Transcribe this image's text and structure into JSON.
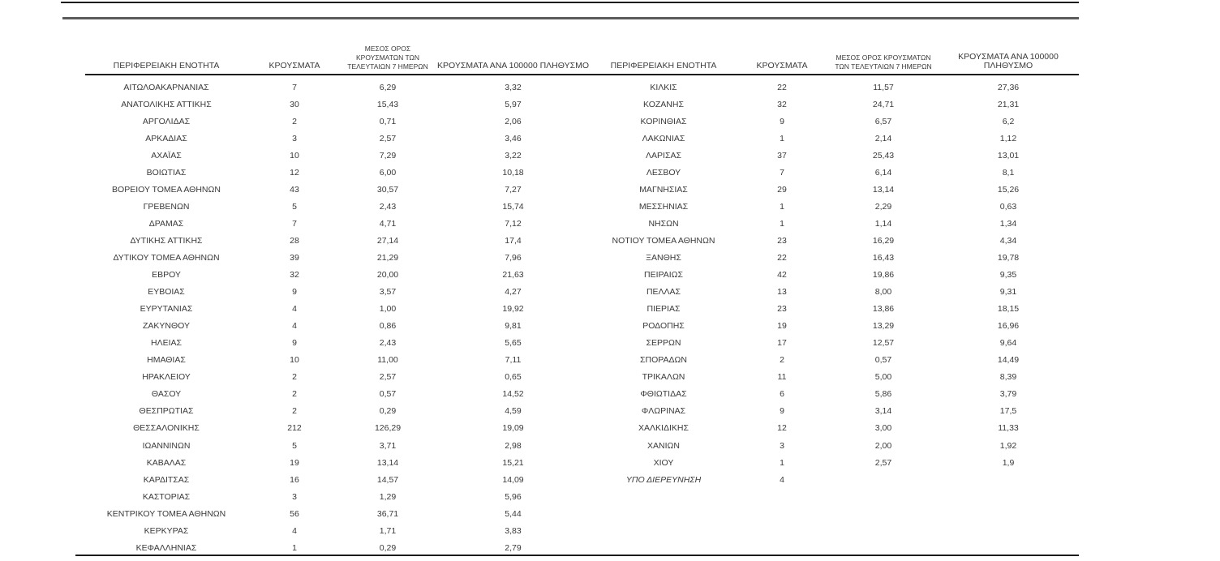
{
  "page": {
    "background": "#ffffff",
    "text_color": "#3a3a3a",
    "rule_black": "#1c1c1c",
    "rule_gray": "#5b5b5b"
  },
  "header": {
    "col_region": "ΠΕΡΙΦΕΡΕΙΑΚΗ ΕΝΟΤΗΤΑ",
    "col_cases": "ΚΡΟΥΣΜΑΤΑ",
    "col_avg7": "ΜΕΣΟΣ ΟΡΟΣ ΚΡΟΥΣΜΑΤΩΝ ΤΩΝ ΤΕΛΕΥΤΑΙΩΝ 7 ΗΜΕΡΩΝ",
    "col_per100k": "ΚΡΟΥΣΜΑΤΑ ΑΝΑ 100000 ΠΛΗΘΥΣΜΟ"
  },
  "tables": [
    {
      "id": "left",
      "rows": [
        {
          "region": "ΑΙΤΩΛΟΑΚΑΡΝΑΝΙΑΣ",
          "cases": "7",
          "avg7": "6,29",
          "per100k": "3,32"
        },
        {
          "region": "ΑΝΑΤΟΛΙΚΗΣ ΑΤΤΙΚΗΣ",
          "cases": "30",
          "avg7": "15,43",
          "per100k": "5,97"
        },
        {
          "region": "ΑΡΓΟΛΙΔΑΣ",
          "cases": "2",
          "avg7": "0,71",
          "per100k": "2,06"
        },
        {
          "region": "ΑΡΚΑΔΙΑΣ",
          "cases": "3",
          "avg7": "2,57",
          "per100k": "3,46"
        },
        {
          "region": "ΑΧΑΪΑΣ",
          "cases": "10",
          "avg7": "7,29",
          "per100k": "3,22"
        },
        {
          "region": "ΒΟΙΩΤΙΑΣ",
          "cases": "12",
          "avg7": "6,00",
          "per100k": "10,18"
        },
        {
          "region": "ΒΟΡΕΙΟΥ ΤΟΜΕΑ ΑΘΗΝΩΝ",
          "cases": "43",
          "avg7": "30,57",
          "per100k": "7,27"
        },
        {
          "region": "ΓΡΕΒΕΝΩΝ",
          "cases": "5",
          "avg7": "2,43",
          "per100k": "15,74"
        },
        {
          "region": "ΔΡΑΜΑΣ",
          "cases": "7",
          "avg7": "4,71",
          "per100k": "7,12"
        },
        {
          "region": "ΔΥΤΙΚΗΣ ΑΤΤΙΚΗΣ",
          "cases": "28",
          "avg7": "27,14",
          "per100k": "17,4"
        },
        {
          "region": "ΔΥΤΙΚΟΥ ΤΟΜΕΑ ΑΘΗΝΩΝ",
          "cases": "39",
          "avg7": "21,29",
          "per100k": "7,96"
        },
        {
          "region": "ΕΒΡΟΥ",
          "cases": "32",
          "avg7": "20,00",
          "per100k": "21,63"
        },
        {
          "region": "ΕΥΒΟΙΑΣ",
          "cases": "9",
          "avg7": "3,57",
          "per100k": "4,27"
        },
        {
          "region": "ΕΥΡΥΤΑΝΙΑΣ",
          "cases": "4",
          "avg7": "1,00",
          "per100k": "19,92"
        },
        {
          "region": "ΖΑΚΥΝΘΟΥ",
          "cases": "4",
          "avg7": "0,86",
          "per100k": "9,81"
        },
        {
          "region": "ΗΛΕΙΑΣ",
          "cases": "9",
          "avg7": "2,43",
          "per100k": "5,65"
        },
        {
          "region": "ΗΜΑΘΙΑΣ",
          "cases": "10",
          "avg7": "11,00",
          "per100k": "7,11"
        },
        {
          "region": "ΗΡΑΚΛΕΙΟΥ",
          "cases": "2",
          "avg7": "2,57",
          "per100k": "0,65"
        },
        {
          "region": "ΘΑΣΟΥ",
          "cases": "2",
          "avg7": "0,57",
          "per100k": "14,52"
        },
        {
          "region": "ΘΕΣΠΡΩΤΙΑΣ",
          "cases": "2",
          "avg7": "0,29",
          "per100k": "4,59"
        },
        {
          "region": "ΘΕΣΣΑΛΟΝΙΚΗΣ",
          "cases": "212",
          "avg7": "126,29",
          "per100k": "19,09"
        },
        {
          "region": "ΙΩΑΝΝΙΝΩΝ",
          "cases": "5",
          "avg7": "3,71",
          "per100k": "2,98"
        },
        {
          "region": "ΚΑΒΑΛΑΣ",
          "cases": "19",
          "avg7": "13,14",
          "per100k": "15,21"
        },
        {
          "region": "ΚΑΡΔΙΤΣΑΣ",
          "cases": "16",
          "avg7": "14,57",
          "per100k": "14,09"
        },
        {
          "region": "ΚΑΣΤΟΡΙΑΣ",
          "cases": "3",
          "avg7": "1,29",
          "per100k": "5,96"
        },
        {
          "region": "ΚΕΝΤΡΙΚΟΥ ΤΟΜΕΑ ΑΘΗΝΩΝ",
          "cases": "56",
          "avg7": "36,71",
          "per100k": "5,44"
        },
        {
          "region": "ΚΕΡΚΥΡΑΣ",
          "cases": "4",
          "avg7": "1,71",
          "per100k": "3,83"
        },
        {
          "region": "ΚΕΦΑΛΛΗΝΙΑΣ",
          "cases": "1",
          "avg7": "0,29",
          "per100k": "2,79"
        }
      ]
    },
    {
      "id": "right",
      "rows": [
        {
          "region": "ΚΙΛΚΙΣ",
          "cases": "22",
          "avg7": "11,57",
          "per100k": "27,36"
        },
        {
          "region": "ΚΟΖΑΝΗΣ",
          "cases": "32",
          "avg7": "24,71",
          "per100k": "21,31"
        },
        {
          "region": "ΚΟΡΙΝΘΙΑΣ",
          "cases": "9",
          "avg7": "6,57",
          "per100k": "6,2"
        },
        {
          "region": "ΛΑΚΩΝΙΑΣ",
          "cases": "1",
          "avg7": "2,14",
          "per100k": "1,12"
        },
        {
          "region": "ΛΑΡΙΣΑΣ",
          "cases": "37",
          "avg7": "25,43",
          "per100k": "13,01"
        },
        {
          "region": "ΛΕΣΒΟΥ",
          "cases": "7",
          "avg7": "6,14",
          "per100k": "8,1"
        },
        {
          "region": "ΜΑΓΝΗΣΙΑΣ",
          "cases": "29",
          "avg7": "13,14",
          "per100k": "15,26"
        },
        {
          "region": "ΜΕΣΣΗΝΙΑΣ",
          "cases": "1",
          "avg7": "2,29",
          "per100k": "0,63"
        },
        {
          "region": "ΝΗΣΩΝ",
          "cases": "1",
          "avg7": "1,14",
          "per100k": "1,34"
        },
        {
          "region": "ΝΟΤΙΟΥ ΤΟΜΕΑ ΑΘΗΝΩΝ",
          "cases": "23",
          "avg7": "16,29",
          "per100k": "4,34"
        },
        {
          "region": "ΞΑΝΘΗΣ",
          "cases": "22",
          "avg7": "16,43",
          "per100k": "19,78"
        },
        {
          "region": "ΠΕΙΡΑΙΩΣ",
          "cases": "42",
          "avg7": "19,86",
          "per100k": "9,35"
        },
        {
          "region": "ΠΕΛΛΑΣ",
          "cases": "13",
          "avg7": "8,00",
          "per100k": "9,31"
        },
        {
          "region": "ΠΙΕΡΙΑΣ",
          "cases": "23",
          "avg7": "13,86",
          "per100k": "18,15"
        },
        {
          "region": "ΡΟΔΟΠΗΣ",
          "cases": "19",
          "avg7": "13,29",
          "per100k": "16,96"
        },
        {
          "region": "ΣΕΡΡΩΝ",
          "cases": "17",
          "avg7": "12,57",
          "per100k": "9,64"
        },
        {
          "region": "ΣΠΟΡΑΔΩΝ",
          "cases": "2",
          "avg7": "0,57",
          "per100k": "14,49"
        },
        {
          "region": "ΤΡΙΚΑΛΩΝ",
          "cases": "11",
          "avg7": "5,00",
          "per100k": "8,39"
        },
        {
          "region": "ΦΘΙΩΤΙΔΑΣ",
          "cases": "6",
          "avg7": "5,86",
          "per100k": "3,79"
        },
        {
          "region": "ΦΛΩΡΙΝΑΣ",
          "cases": "9",
          "avg7": "3,14",
          "per100k": "17,5"
        },
        {
          "region": "ΧΑΛΚΙΔΙΚΗΣ",
          "cases": "12",
          "avg7": "3,00",
          "per100k": "11,33"
        },
        {
          "region": "ΧΑΝΙΩΝ",
          "cases": "3",
          "avg7": "2,00",
          "per100k": "1,92"
        },
        {
          "region": "ΧΙΟΥ",
          "cases": "1",
          "avg7": "2,57",
          "per100k": "1,9"
        },
        {
          "region": "ΥΠΟ ΔΙΕΡΕΥΝΗΣΗ",
          "cases": "4",
          "avg7": "",
          "per100k": "",
          "italic": true
        }
      ]
    }
  ]
}
